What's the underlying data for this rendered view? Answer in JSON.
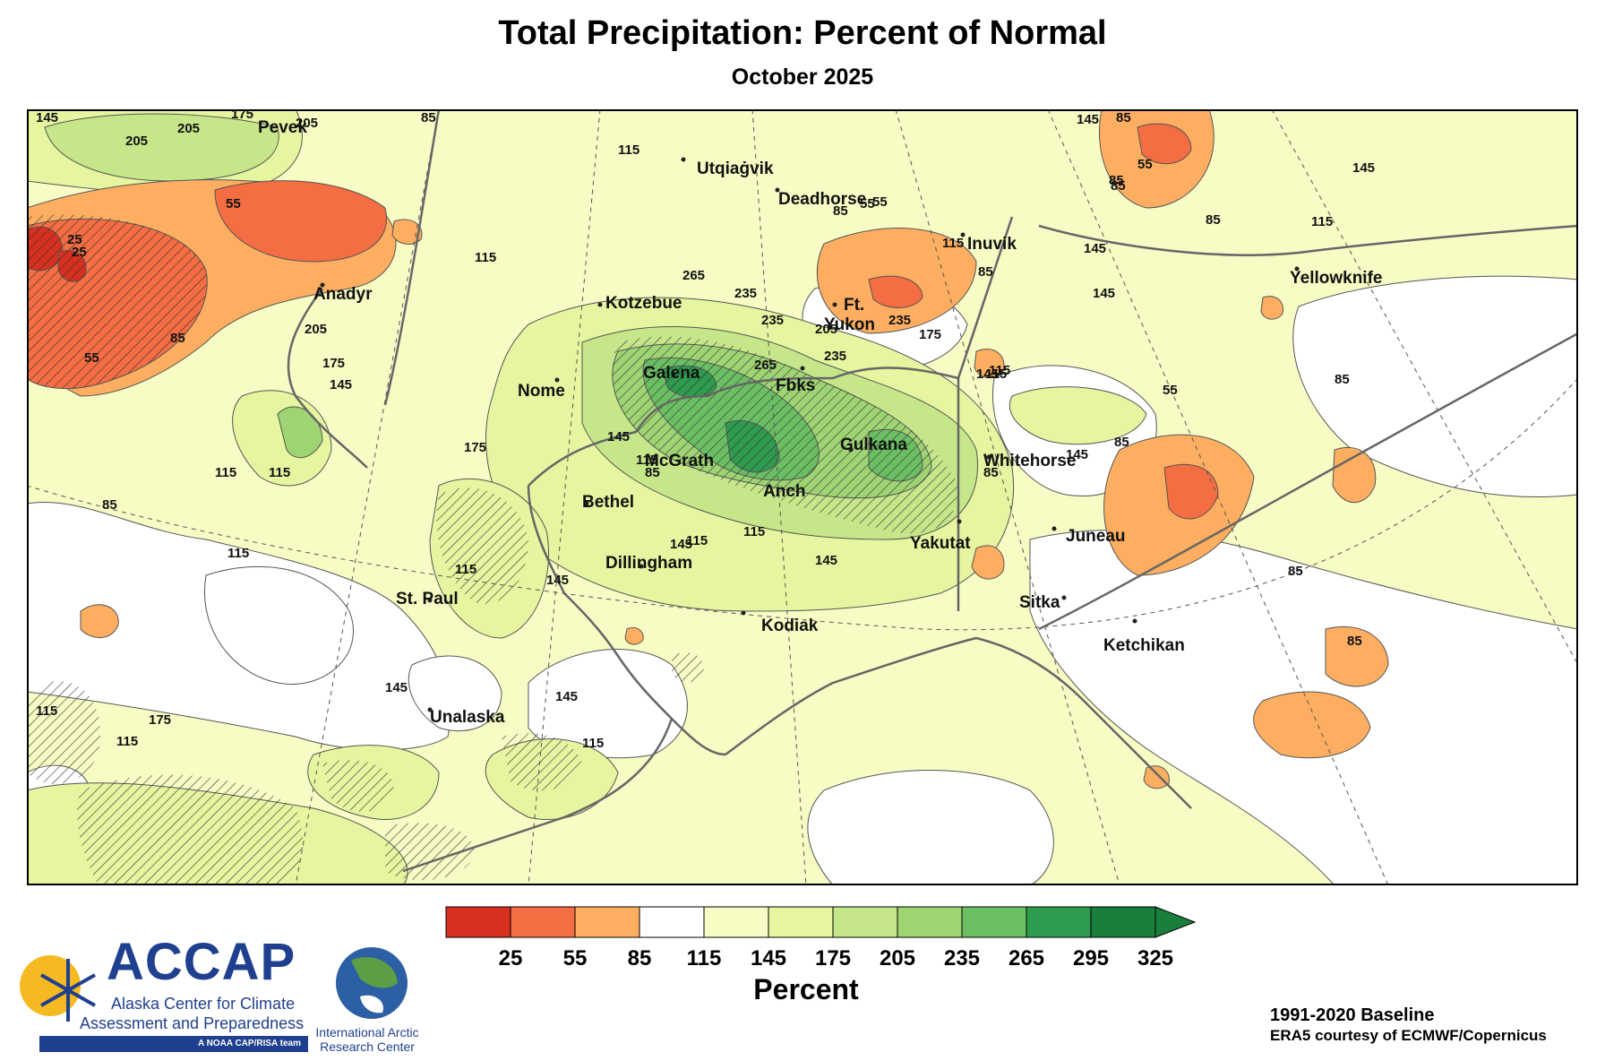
{
  "title": "Total Precipitation: Percent of Normal",
  "subtitle": "October 2025",
  "colorbar": {
    "title": "Percent",
    "ticks": [
      "25",
      "55",
      "85",
      "115",
      "145",
      "175",
      "205",
      "235",
      "265",
      "295",
      "325"
    ],
    "colors": [
      "#d7301f",
      "#f46d43",
      "#fdae61",
      "#ffffff",
      "#f7fcc4",
      "#e6f5a0",
      "#c5e78a",
      "#9fd473",
      "#6bbf63",
      "#2e9b4e",
      "#1a7f3c",
      "#1a7f3c"
    ]
  },
  "map": {
    "cities": [
      {
        "name": "Utqiaġvik"
      },
      {
        "name": "Deadhorse"
      },
      {
        "name": "Inuvik"
      },
      {
        "name": "Yellowknife"
      },
      {
        "name": "Pevek"
      },
      {
        "name": "Anadyr"
      },
      {
        "name": "Kotzebue"
      },
      {
        "name": "Ft."
      },
      {
        "name": "Yukon"
      },
      {
        "name": "Nome"
      },
      {
        "name": "Galena"
      },
      {
        "name": "Fbks"
      },
      {
        "name": "Gulkana"
      },
      {
        "name": "McGrath"
      },
      {
        "name": "Whitehorse"
      },
      {
        "name": "Bethel"
      },
      {
        "name": "Anch"
      },
      {
        "name": "Juneau"
      },
      {
        "name": "Yakutat"
      },
      {
        "name": "Dillingham"
      },
      {
        "name": "St. Paul"
      },
      {
        "name": "Kodiak"
      },
      {
        "name": "Sitka"
      },
      {
        "name": "Ketchikan"
      },
      {
        "name": "Unalaska"
      }
    ],
    "contour_labels": [
      "145",
      "205",
      "205",
      "175",
      "205",
      "115",
      "85",
      "115",
      "115",
      "55",
      "55",
      "25",
      "25",
      "85",
      "55",
      "205",
      "175",
      "145",
      "265",
      "235",
      "235",
      "265",
      "205",
      "235",
      "235",
      "175",
      "145",
      "115",
      "85",
      "55",
      "85",
      "145",
      "145",
      "115",
      "85",
      "175",
      "145",
      "115",
      "115",
      "85",
      "115",
      "115",
      "145",
      "115",
      "115",
      "145",
      "145",
      "175",
      "145",
      "145",
      "115",
      "85",
      "55",
      "85",
      "85",
      "55",
      "85",
      "85",
      "85",
      "85",
      "115",
      "115",
      "145",
      "145",
      "145",
      "115",
      "115",
      "85",
      "85"
    ]
  },
  "logos": {
    "accap_name": "ACCAP",
    "accap_line1": "Alaska Center for Climate",
    "accap_line2": "Assessment and Preparedness",
    "accap_banner": "A NOAA CAP/RISA team",
    "iarc_line1": "International Arctic",
    "iarc_line2": "Research Center"
  },
  "footer": {
    "baseline": "1991-2020 Baseline",
    "credit": "ERA5 courtesy of ECMWF/Copernicus"
  }
}
